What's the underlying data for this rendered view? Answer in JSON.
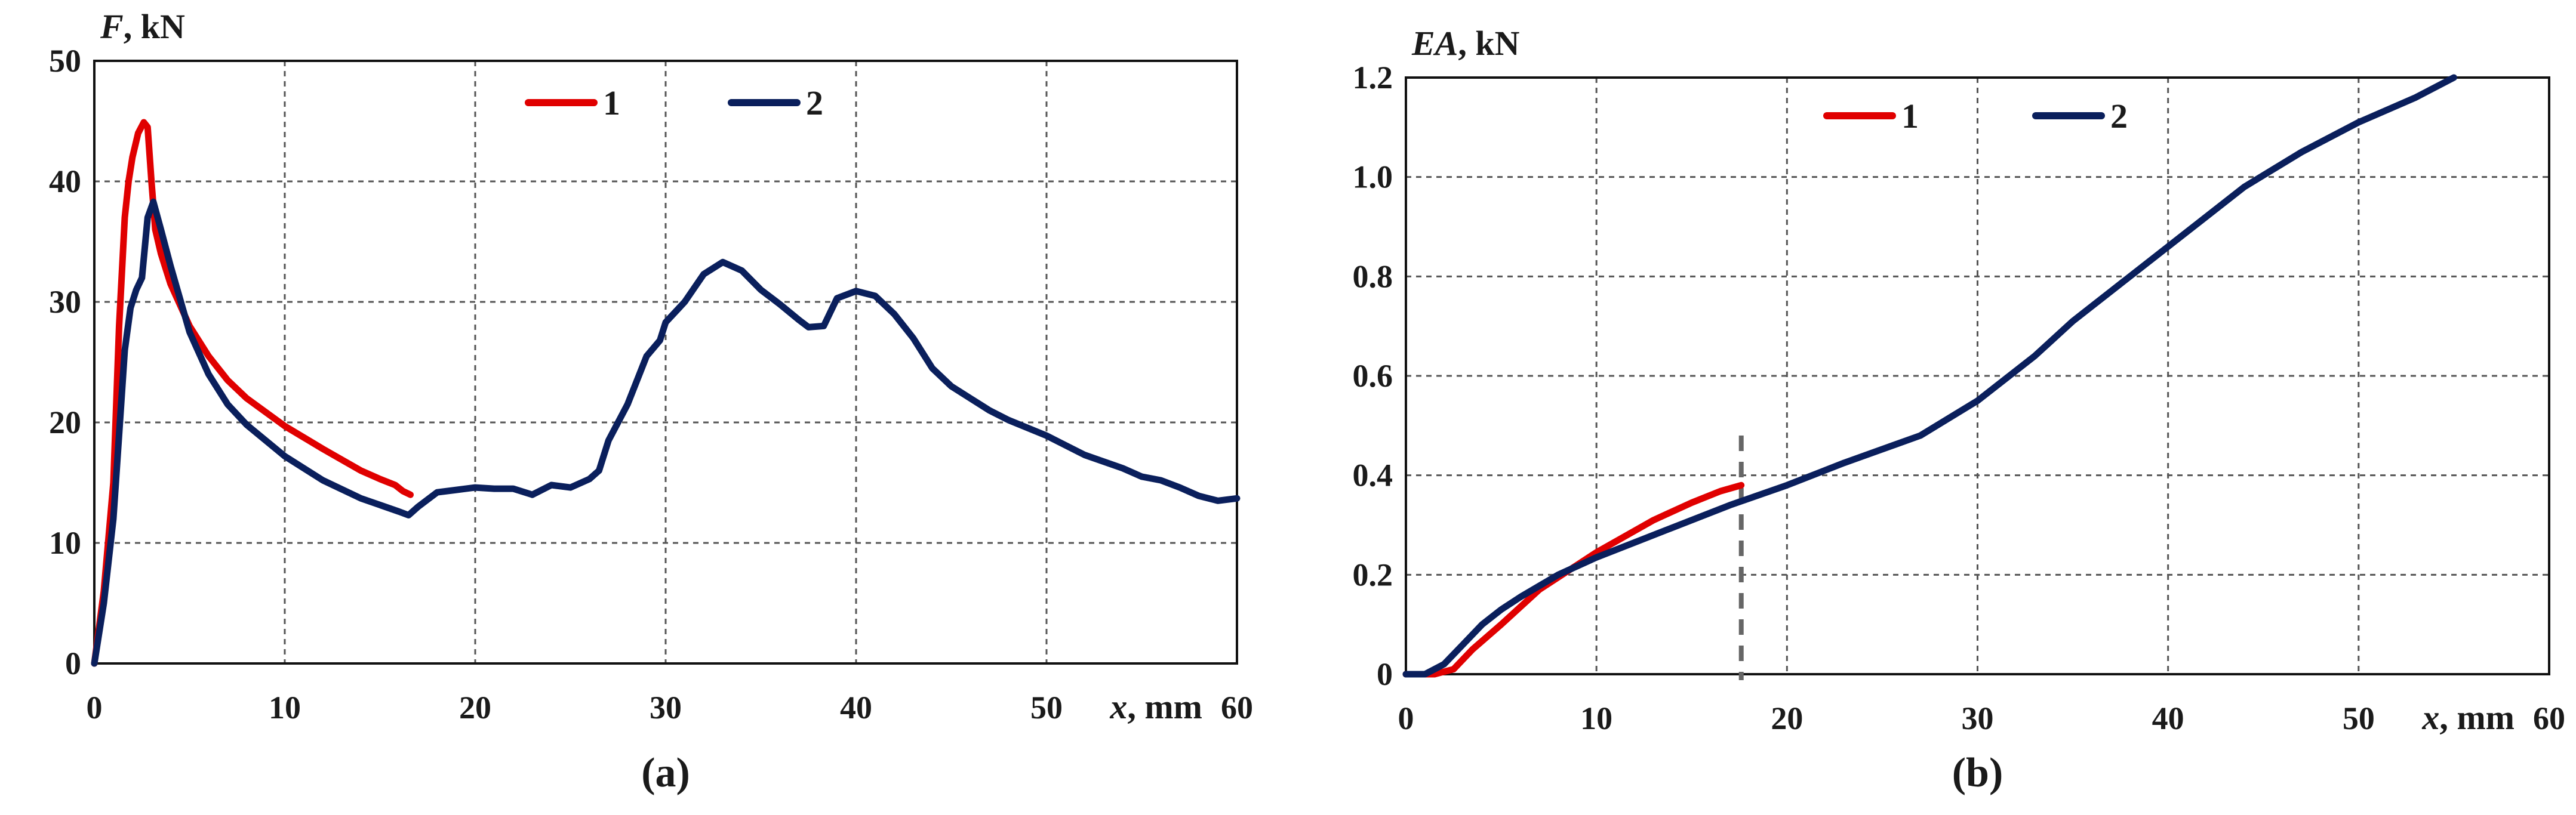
{
  "chart_data": [
    {
      "type": "line",
      "panel_label": "(a)",
      "ylabel_var": "F",
      "ylabel_unit": ", kN",
      "xlabel_var": "x",
      "xlabel_unit": ", mm",
      "xlim": [
        0,
        60
      ],
      "ylim": [
        0,
        50
      ],
      "x_ticks": [
        0,
        10,
        20,
        30,
        40,
        50,
        60
      ],
      "y_ticks": [
        0,
        10,
        20,
        30,
        40,
        50
      ],
      "x_tick_labels": [
        "0",
        "10",
        "20",
        "30",
        "40",
        "50",
        "60"
      ],
      "y_tick_labels": [
        "0",
        "10",
        "20",
        "30",
        "40",
        "50"
      ],
      "grid": true,
      "legend_position": "top",
      "series": [
        {
          "name": "1",
          "color": "#e00000",
          "x": [
            0,
            0.5,
            1,
            1.3,
            1.6,
            1.8,
            2.0,
            2.3,
            2.6,
            2.8,
            3.0,
            3.2,
            3.5,
            4.0,
            5,
            6,
            7,
            8,
            10,
            12,
            14,
            15,
            15.8,
            16.2,
            16.6
          ],
          "y": [
            0,
            6,
            15,
            28,
            37,
            40,
            42,
            44,
            44.9,
            44.5,
            40,
            36,
            34,
            31.5,
            28,
            25.5,
            23.5,
            22,
            19.7,
            17.8,
            16,
            15.3,
            14.8,
            14.3,
            14.0
          ]
        },
        {
          "name": "2",
          "color": "#0a1f5c",
          "x": [
            0,
            0.5,
            1,
            1.3,
            1.6,
            1.9,
            2.2,
            2.5,
            2.8,
            3.1,
            3.5,
            4,
            5,
            6,
            7,
            8,
            10,
            12,
            14,
            16,
            16.5,
            17,
            17.5,
            18,
            20,
            21,
            22,
            23,
            24,
            25,
            26,
            26.5,
            27,
            28,
            29,
            29.7,
            30,
            31,
            32,
            33,
            34,
            35,
            36,
            37,
            37.5,
            38.3,
            39,
            40,
            41,
            42,
            43,
            44,
            45,
            46,
            47,
            48,
            50,
            52,
            54,
            55,
            56,
            57,
            58,
            59,
            60
          ],
          "y": [
            0,
            5,
            12,
            19,
            26,
            29.5,
            31,
            32,
            37,
            38.3,
            36,
            33,
            27.5,
            24,
            21.5,
            19.8,
            17.2,
            15.2,
            13.7,
            12.6,
            12.3,
            13,
            13.6,
            14.2,
            14.6,
            14.5,
            14.5,
            14.0,
            14.8,
            14.6,
            15.3,
            16,
            18.5,
            21.5,
            25.5,
            26.8,
            28.3,
            30,
            32.3,
            33.3,
            32.6,
            31,
            29.8,
            28.5,
            27.9,
            28,
            30.3,
            30.9,
            30.5,
            29,
            27,
            24.5,
            23,
            22,
            21,
            20.2,
            18.9,
            17.3,
            16.2,
            15.5,
            15.2,
            14.6,
            13.9,
            13.5,
            13.7
          ]
        }
      ]
    },
    {
      "type": "line",
      "panel_label": "(b)",
      "ylabel_var": "EA",
      "ylabel_unit": ", kN",
      "xlabel_var": "x",
      "xlabel_unit": ", mm",
      "xlim": [
        0,
        60
      ],
      "ylim": [
        0,
        1.2
      ],
      "x_ticks": [
        0,
        10,
        20,
        30,
        40,
        50,
        60
      ],
      "y_ticks": [
        0,
        0.2,
        0.4,
        0.6,
        0.8,
        1.0,
        1.2
      ],
      "x_tick_labels": [
        "0",
        "10",
        "20",
        "30",
        "40",
        "50",
        "60"
      ],
      "y_tick_labels": [
        "0",
        "0.2",
        "0.4",
        "0.6",
        "0.8",
        "1.0",
        "1.2"
      ],
      "grid": true,
      "legend_position": "top",
      "marker_vline": {
        "x": 17.6,
        "y_top": 0.48,
        "color": "#666666"
      },
      "series": [
        {
          "name": "1",
          "color": "#e00000",
          "x": [
            0,
            1.5,
            2.5,
            3.5,
            5,
            7,
            10,
            13,
            15,
            16.5,
            17.6
          ],
          "y": [
            0,
            0,
            0.01,
            0.05,
            0.1,
            0.17,
            0.245,
            0.31,
            0.345,
            0.368,
            0.38
          ]
        },
        {
          "name": "2",
          "color": "#0a1f5c",
          "x": [
            0,
            1,
            2,
            3,
            4,
            5,
            6,
            8,
            10,
            12,
            14,
            17,
            20,
            23,
            27,
            30,
            33,
            35,
            37,
            40,
            44,
            47,
            50,
            53,
            55
          ],
          "y": [
            0,
            0,
            0.02,
            0.06,
            0.1,
            0.13,
            0.155,
            0.2,
            0.235,
            0.265,
            0.295,
            0.34,
            0.38,
            0.425,
            0.48,
            0.55,
            0.64,
            0.71,
            0.77,
            0.86,
            0.98,
            1.05,
            1.11,
            1.16,
            1.2
          ]
        }
      ]
    }
  ]
}
